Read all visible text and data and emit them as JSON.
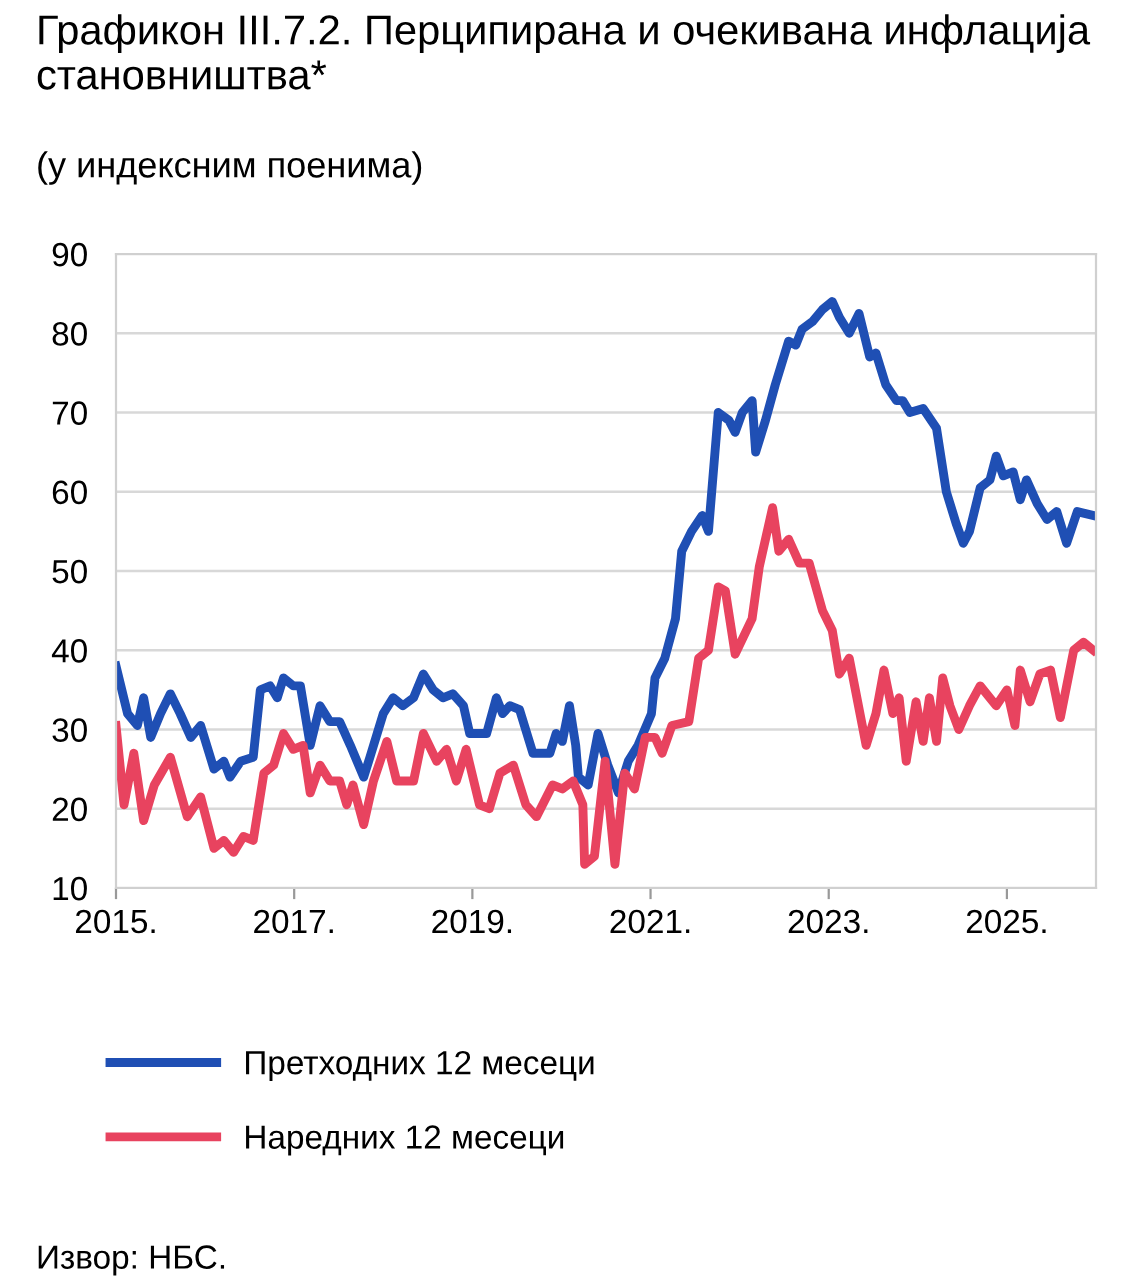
{
  "chart_data": {
    "type": "line",
    "title": "Графикон III.7.2. Перципирана и очекивана инфлација становништва*",
    "subtitle": "(у индексним поенима)",
    "annotations": [
      "Извор: НБС."
    ],
    "xlim": [
      2015,
      2026
    ],
    "xticks": [
      {
        "value": 2015,
        "label": "2015."
      },
      {
        "value": 2017,
        "label": "2017."
      },
      {
        "value": 2019,
        "label": "2019."
      },
      {
        "value": 2021,
        "label": "2021."
      },
      {
        "value": 2023,
        "label": "2023."
      },
      {
        "value": 2025,
        "label": "2025."
      }
    ],
    "ylim": [
      10,
      90
    ],
    "yticks": [
      10,
      20,
      30,
      40,
      50,
      60,
      70,
      80,
      90
    ],
    "grid": "y",
    "legend": "bottom",
    "series": [
      {
        "name": "Претходних 12 месеци",
        "color": "#1f4fb4",
        "x": [
          2015.0,
          2015.13,
          2015.24,
          2015.31,
          2015.39,
          2015.5,
          2015.61,
          2015.72,
          2015.84,
          2015.95,
          2016.1,
          2016.21,
          2016.28,
          2016.4,
          2016.54,
          2016.62,
          2016.73,
          2016.81,
          2016.88,
          2016.99,
          2017.07,
          2017.18,
          2017.29,
          2017.4,
          2017.51,
          2017.63,
          2017.78,
          2017.85,
          2018.0,
          2018.11,
          2018.22,
          2018.34,
          2018.45,
          2018.56,
          2018.67,
          2018.78,
          2018.9,
          2018.97,
          2019.16,
          2019.27,
          2019.34,
          2019.42,
          2019.53,
          2019.68,
          2019.87,
          2019.94,
          2020.01,
          2020.09,
          2020.16,
          2020.19,
          2020.3,
          2020.41,
          2020.52,
          2020.64,
          2020.75,
          2020.86,
          2021.01,
          2021.05,
          2021.16,
          2021.28,
          2021.35,
          2021.46,
          2021.58,
          2021.65,
          2021.76,
          2021.88,
          2021.95,
          2022.03,
          2022.14,
          2022.18,
          2022.29,
          2022.4,
          2022.55,
          2022.63,
          2022.7,
          2022.82,
          2022.93,
          2023.04,
          2023.12,
          2023.23,
          2023.34,
          2023.46,
          2023.53,
          2023.64,
          2023.76,
          2023.83,
          2023.91,
          2024.06,
          2024.21,
          2024.32,
          2024.43,
          2024.51,
          2024.58,
          2024.7,
          2024.81,
          2024.88,
          2024.96,
          2025.07,
          2025.15,
          2025.22,
          2025.34,
          2025.45,
          2025.56,
          2025.67,
          2025.79,
          2025.97
        ],
        "values": [
          38,
          32,
          30.5,
          34,
          29,
          32,
          34.5,
          32,
          29,
          30.5,
          25,
          26,
          24,
          26,
          26.5,
          35,
          35.5,
          34,
          36.5,
          35.5,
          35.5,
          28,
          33,
          31,
          31,
          28,
          24,
          26.5,
          32,
          34,
          33,
          34,
          37,
          35,
          34,
          34.5,
          33,
          29.5,
          29.5,
          34,
          32,
          33,
          32.5,
          27,
          27,
          29.5,
          28.5,
          33,
          28,
          24,
          23,
          29.5,
          25.5,
          22,
          26,
          28,
          32,
          36.5,
          39,
          44,
          52.5,
          55,
          57,
          55,
          70,
          69,
          67.5,
          70,
          71.5,
          65,
          69,
          73.5,
          79,
          78.5,
          80.5,
          81.5,
          83,
          84,
          82,
          80,
          82.5,
          77,
          77.5,
          73.5,
          71.5,
          71.5,
          70,
          70.5,
          68,
          60,
          56,
          53.5,
          55,
          60.5,
          61.5,
          64.5,
          62,
          62.5,
          59,
          61.5,
          58.5,
          56.5,
          57.5,
          53.5,
          57.5,
          57
        ]
      },
      {
        "name": "Наредних 12 месеци",
        "color": "#e8435f",
        "x": [
          2015.0,
          2015.09,
          2015.2,
          2015.31,
          2015.43,
          2015.61,
          2015.8,
          2015.95,
          2016.1,
          2016.21,
          2016.32,
          2016.43,
          2016.54,
          2016.66,
          2016.77,
          2016.88,
          2016.99,
          2017.1,
          2017.18,
          2017.29,
          2017.4,
          2017.51,
          2017.59,
          2017.66,
          2017.78,
          2017.89,
          2018.04,
          2018.15,
          2018.34,
          2018.45,
          2018.6,
          2018.71,
          2018.82,
          2018.93,
          2019.08,
          2019.19,
          2019.31,
          2019.46,
          2019.6,
          2019.72,
          2019.9,
          2020.01,
          2020.13,
          2020.24,
          2020.26,
          2020.37,
          2020.49,
          2020.6,
          2020.71,
          2020.82,
          2020.94,
          2021.05,
          2021.13,
          2021.24,
          2021.43,
          2021.54,
          2021.65,
          2021.76,
          2021.84,
          2021.95,
          2022.14,
          2022.22,
          2022.37,
          2022.44,
          2022.55,
          2022.67,
          2022.78,
          2022.93,
          2023.04,
          2023.12,
          2023.23,
          2023.42,
          2023.53,
          2023.62,
          2023.72,
          2023.79,
          2023.87,
          2023.98,
          2024.06,
          2024.13,
          2024.21,
          2024.28,
          2024.36,
          2024.46,
          2024.58,
          2024.7,
          2024.88,
          2025.0,
          2025.09,
          2025.15,
          2025.26,
          2025.37,
          2025.49,
          2025.6,
          2025.75,
          2025.86,
          2025.97
        ],
        "values": [
          30.5,
          20.5,
          27,
          18.5,
          23,
          26.5,
          19,
          21.5,
          15,
          16,
          14.5,
          16.5,
          16,
          24.5,
          25.5,
          29.5,
          27.5,
          28,
          22,
          25.5,
          23.5,
          23.5,
          20.5,
          23,
          18,
          23.5,
          28.5,
          23.5,
          23.5,
          29.5,
          26,
          27.5,
          23.5,
          27.5,
          20.5,
          20,
          24.5,
          25.5,
          20.5,
          19,
          23,
          22.5,
          23.5,
          20.5,
          13,
          14,
          26,
          13,
          24.5,
          22.5,
          29,
          29,
          27,
          30.5,
          31,
          39,
          40,
          48,
          47.5,
          39.5,
          44,
          50.5,
          58,
          52.5,
          54,
          51,
          51,
          45,
          42.5,
          37,
          39,
          28,
          32,
          37.5,
          32,
          34,
          26,
          33.5,
          28.5,
          34,
          28.5,
          36.5,
          33,
          30,
          33,
          35.5,
          33,
          35,
          30.5,
          37.5,
          33.5,
          37,
          37.5,
          31.5,
          40,
          41,
          40
        ]
      }
    ]
  }
}
